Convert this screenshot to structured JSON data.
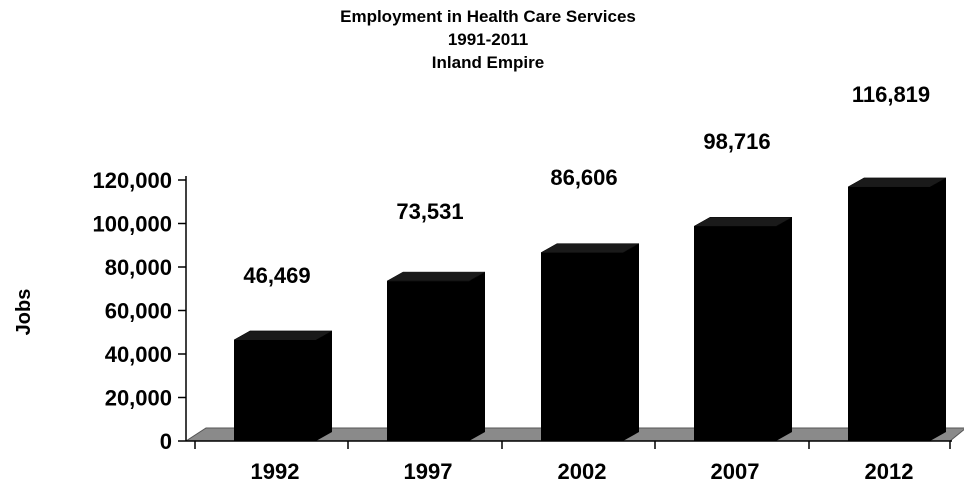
{
  "chart_data": {
    "type": "bar",
    "title_lines": [
      "Employment in Health Care Services",
      "1991-2011",
      "Inland Empire"
    ],
    "xlabel": "",
    "ylabel": "Jobs",
    "categories": [
      "1992",
      "1997",
      "2002",
      "2007",
      "2012"
    ],
    "values": [
      46469,
      73531,
      86606,
      98716,
      116819
    ],
    "data_labels": [
      "46,469",
      "73,531",
      "86,606",
      "98,716",
      "116,819"
    ],
    "ylim": [
      0,
      120000
    ],
    "yticks": [
      0,
      20000,
      40000,
      60000,
      80000,
      100000,
      120000
    ],
    "ytick_labels": [
      "0",
      "20,000",
      "40,000",
      "60,000",
      "80,000",
      "100,000",
      "120,000"
    ],
    "grid": false,
    "legend": "none",
    "colors": {
      "bar": "#000000",
      "floor": "#8a8a8a",
      "text": "#000000"
    }
  }
}
